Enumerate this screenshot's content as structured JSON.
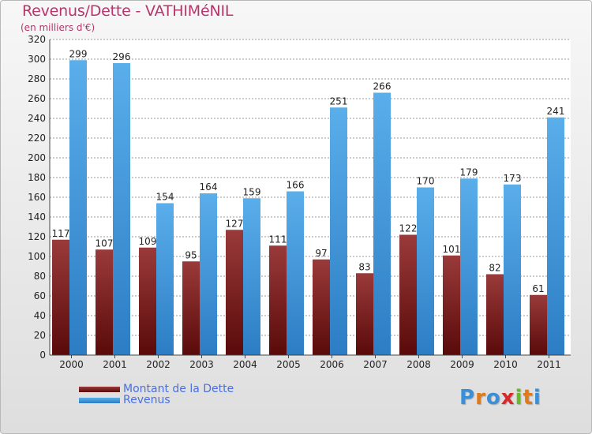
{
  "title": "Revenus/Dette - VATHIMéNIL",
  "subtitle": "(en milliers d'€)",
  "colors": {
    "dette_light": "#9a3a3a",
    "dette_dark": "#5a0a0a",
    "revenus_light": "#5aaeea",
    "revenus_dark": "#2c7dc4",
    "axis_text": "#222222",
    "grid": "#9a9a9a"
  },
  "chart_data": {
    "type": "bar",
    "title": "Revenus/Dette - VATHIMéNIL",
    "subtitle": "(en milliers d'€)",
    "categories": [
      "2000",
      "2001",
      "2002",
      "2003",
      "2004",
      "2005",
      "2006",
      "2007",
      "2008",
      "2009",
      "2010",
      "2011"
    ],
    "series": [
      {
        "name": "Montant de la Dette",
        "values": [
          117,
          107,
          109,
          95,
          127,
          111,
          97,
          83,
          122,
          101,
          82,
          61
        ]
      },
      {
        "name": "Revenus",
        "values": [
          299,
          296,
          154,
          164,
          159,
          166,
          251,
          266,
          170,
          179,
          173,
          241
        ]
      }
    ],
    "ylim": [
      0,
      320
    ],
    "yticks": [
      0,
      20,
      40,
      60,
      80,
      100,
      120,
      140,
      160,
      180,
      200,
      220,
      240,
      260,
      280,
      300,
      320
    ],
    "grid": true,
    "legend_position": "bottom-left"
  },
  "legend": [
    {
      "label": "Montant de la Dette"
    },
    {
      "label": "Revenus"
    }
  ],
  "logo": {
    "letters": [
      "P",
      "r",
      "o",
      "x",
      "i",
      "t",
      "i"
    ],
    "colors": [
      "#3a8fd8",
      "#e07a1a",
      "#3a8fd8",
      "#d8282a",
      "#6ab82e",
      "#e07a1a",
      "#3a8fd8"
    ]
  }
}
